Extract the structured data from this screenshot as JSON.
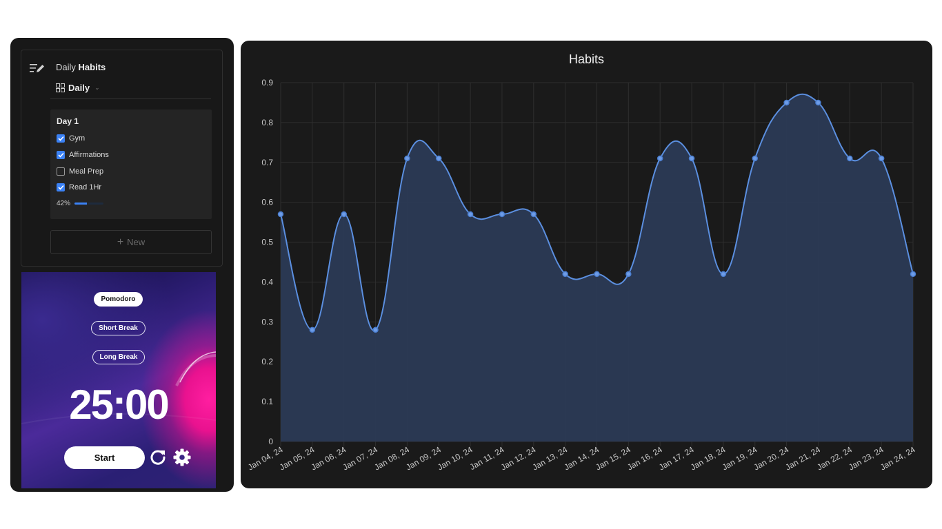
{
  "habits_panel": {
    "title_prefix": "Daily",
    "title_bold": "Habits",
    "view_label": "Daily",
    "day": {
      "title": "Day 1",
      "tasks": [
        {
          "label": "Gym",
          "checked": true
        },
        {
          "label": "Affirmations",
          "checked": true
        },
        {
          "label": "Meal Prep",
          "checked": false
        },
        {
          "label": "Read 1Hr",
          "checked": true
        }
      ],
      "progress_label": "42%",
      "progress_value": 0.42
    },
    "new_label": "New"
  },
  "pomodoro": {
    "modes": [
      "Pomodoro",
      "Short Break",
      "Long Break"
    ],
    "active_mode": "Pomodoro",
    "time": "25:00",
    "start_label": "Start"
  },
  "chart_data": {
    "type": "line",
    "title": "Habits",
    "x": [
      "Jan 04, 24",
      "Jan 05, 24",
      "Jan 06, 24",
      "Jan 07, 24",
      "Jan 08, 24",
      "Jan 09, 24",
      "Jan 10, 24",
      "Jan 11, 24",
      "Jan 12, 24",
      "Jan 13, 24",
      "Jan 14, 24",
      "Jan 15, 24",
      "Jan 16, 24",
      "Jan 17, 24",
      "Jan 18, 24",
      "Jan 19, 24",
      "Jan 20, 24",
      "Jan 21, 24",
      "Jan 22, 24",
      "Jan 23, 24",
      "Jan 24, 24"
    ],
    "values": [
      0.57,
      0.28,
      0.57,
      0.28,
      0.71,
      0.71,
      0.57,
      0.57,
      0.57,
      0.42,
      0.42,
      0.42,
      0.71,
      0.71,
      0.42,
      0.71,
      0.85,
      0.85,
      0.71,
      0.71,
      0.42
    ],
    "ylim": [
      0,
      0.9
    ],
    "yticks": [
      "0",
      "0.1",
      "0.2",
      "0.3",
      "0.4",
      "0.5",
      "0.6",
      "0.7",
      "0.8",
      "0.9"
    ],
    "fill": true,
    "smooth": true,
    "grid": true,
    "line_color": "#5b8fe0",
    "fill_color": "#2b3a55"
  }
}
